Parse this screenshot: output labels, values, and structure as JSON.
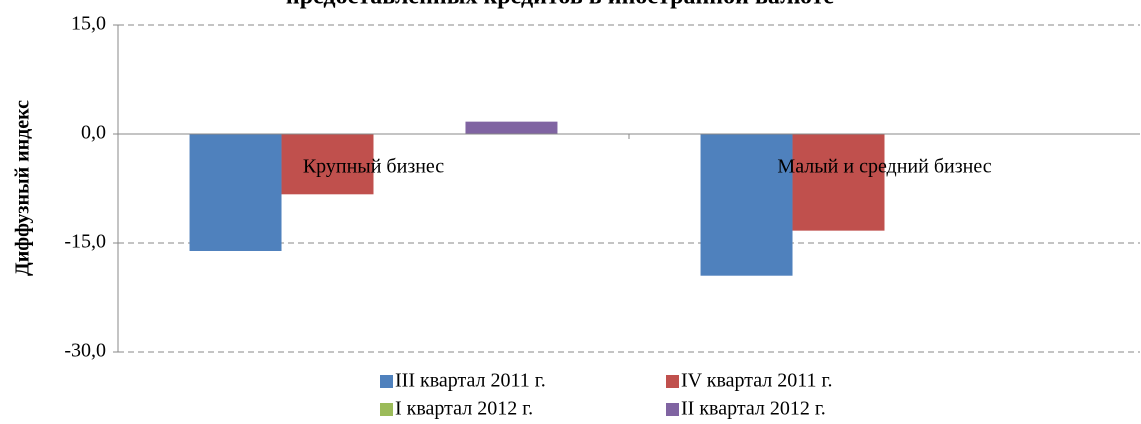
{
  "chart_data": {
    "type": "bar",
    "title": "предоставленных кредитов в иностранной валюте",
    "ylabel": "Диффузный индекс",
    "categories": [
      "Крупный бизнес",
      "Малый и средний бизнес"
    ],
    "series": [
      {
        "name": "III квартал 2011 г.",
        "color": "#4f81bd",
        "values": [
          -16.1,
          -19.5
        ]
      },
      {
        "name": "IV квартал 2011 г.",
        "color": "#c0504d",
        "values": [
          -8.3,
          -13.3
        ]
      },
      {
        "name": "I квартал 2012 г.",
        "color": "#9bbb59",
        "values": [
          0,
          0
        ]
      },
      {
        "name": "II квартал 2012 г.",
        "color": "#8064a2",
        "values": [
          1.7,
          0
        ]
      }
    ],
    "ylim": [
      -30,
      15
    ],
    "yticks": [
      {
        "value": -30,
        "label": "-30,0"
      },
      {
        "value": -15,
        "label": "-15,0"
      },
      {
        "value": 0,
        "label": "0,0"
      },
      {
        "value": 15,
        "label": "15,0"
      }
    ],
    "grid": true
  }
}
